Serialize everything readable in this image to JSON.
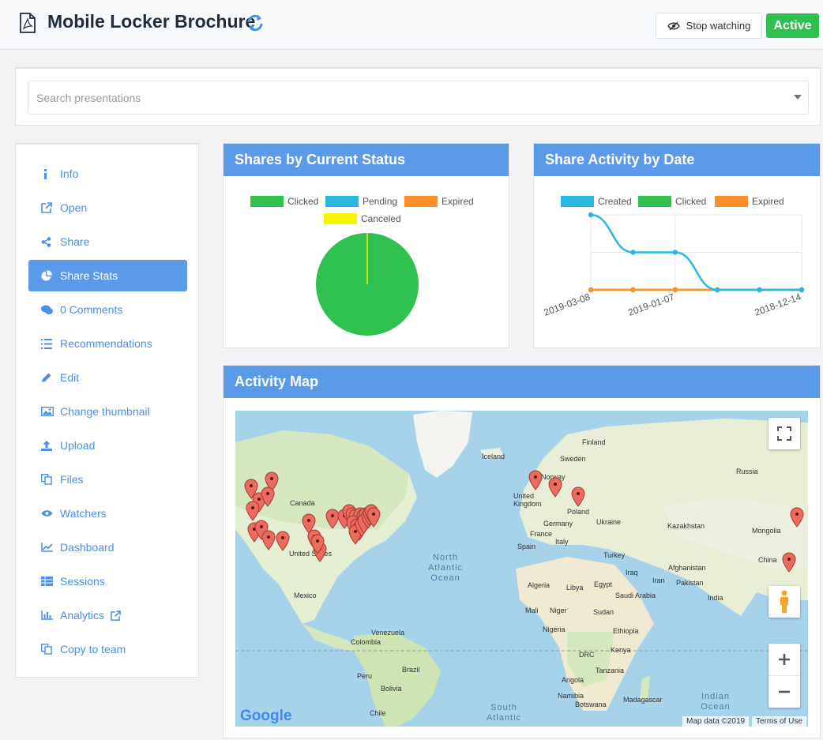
{
  "header": {
    "title": "Mobile Locker Brochure",
    "stop_watching_label": "Stop watching",
    "status_badge": "Active"
  },
  "search": {
    "placeholder": "Search presentations"
  },
  "sidebar": {
    "items": [
      {
        "label": "Info",
        "icon": "info-icon"
      },
      {
        "label": "Open",
        "icon": "external-link-icon"
      },
      {
        "label": "Share",
        "icon": "share-icon"
      },
      {
        "label": "Share Stats",
        "icon": "pie-chart-icon",
        "active": true
      },
      {
        "label": "0 Comments",
        "icon": "comments-icon"
      },
      {
        "label": "Recommendations",
        "icon": "list-icon"
      },
      {
        "label": "Edit",
        "icon": "pencil-icon"
      },
      {
        "label": "Change thumbnail",
        "icon": "image-icon"
      },
      {
        "label": "Upload",
        "icon": "upload-icon"
      },
      {
        "label": "Files",
        "icon": "files-icon"
      },
      {
        "label": "Watchers",
        "icon": "eye-icon"
      },
      {
        "label": "Dashboard",
        "icon": "line-chart-icon"
      },
      {
        "label": "Sessions",
        "icon": "table-icon"
      },
      {
        "label": "Analytics",
        "icon": "bar-chart-icon"
      },
      {
        "label": "Copy to team",
        "icon": "copy-icon"
      }
    ]
  },
  "panels": {
    "status_title": "Shares by Current Status",
    "activity_title": "Share Activity by Date",
    "map_title": "Activity Map"
  },
  "colors": {
    "accent": "#5b9ae9",
    "clicked": "#2fc04f",
    "pending": "#29b6e0",
    "expired": "#ff8f26",
    "canceled": "#f5f500"
  },
  "chart_data": [
    {
      "type": "pie",
      "title": "Shares by Current Status",
      "legend": [
        "Clicked",
        "Pending",
        "Expired",
        "Canceled"
      ],
      "legend_position": "top",
      "slices": [
        {
          "label": "Clicked",
          "value": 100
        },
        {
          "label": "Pending",
          "value": 0
        },
        {
          "label": "Expired",
          "value": 0
        },
        {
          "label": "Canceled",
          "value": 0
        }
      ]
    },
    {
      "type": "line",
      "title": "Share Activity by Date",
      "legend": [
        "Created",
        "Clicked",
        "Expired"
      ],
      "legend_position": "top",
      "grid": true,
      "x_tick_labels": [
        "2019-03-08",
        "2019-01-07",
        "2018-12-14"
      ],
      "x": [
        "2019-03-08",
        "",
        "2019-01-07",
        "",
        "",
        "2018-12-14"
      ],
      "ylim": [
        0,
        2
      ],
      "series": [
        {
          "name": "Created",
          "values": [
            2,
            1,
            1,
            0,
            0,
            0
          ]
        },
        {
          "name": "Clicked",
          "values": [
            0,
            0,
            0,
            0,
            0,
            0
          ]
        },
        {
          "name": "Expired",
          "values": [
            0,
            0,
            0,
            0,
            0,
            0
          ]
        }
      ]
    }
  ],
  "map": {
    "labels": [
      "Finland",
      "Iceland",
      "Sweden",
      "Norway",
      "Russia",
      "Canada",
      "United Kingdom",
      "Poland",
      "Germany",
      "Ukraine",
      "Kazakhstan",
      "France",
      "Italy",
      "Spain",
      "Mongolia",
      "Turkey",
      "United States",
      "Afghanistan",
      "China",
      "Iraq",
      "Iran",
      "Pakistan",
      "Algeria",
      "Libya",
      "Egypt",
      "Saudi Arabia",
      "India",
      "Mexico",
      "Mali",
      "Niger",
      "Sudan",
      "Nigeria",
      "Ethiopia",
      "Venezuela",
      "Colombia",
      "Kenya",
      "DRC",
      "Peru",
      "Brazil",
      "Angola",
      "Tanzania",
      "Bolivia",
      "Namibia",
      "Botswana",
      "Madagascar",
      "Chile"
    ],
    "oceans": [
      "North Atlantic Ocean",
      "South Atlantic",
      "Indian Ocean"
    ],
    "footer_data": "Map data ©2019",
    "footer_terms": "Terms of Use",
    "google": "Google"
  }
}
